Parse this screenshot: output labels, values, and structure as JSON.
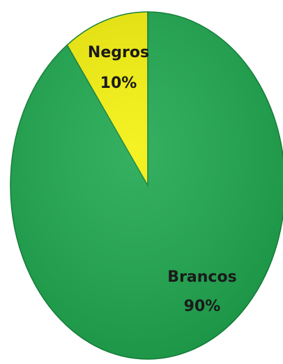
{
  "chart_data": {
    "type": "pie",
    "slices": [
      {
        "label": "Negros",
        "value": 10,
        "value_label": "10%",
        "color": "#f4f10c"
      },
      {
        "label": "Brancos",
        "value": 90,
        "value_label": "90%",
        "color": "#1fa84f"
      }
    ],
    "start_angle_deg": -90,
    "direction": "counterclockwise",
    "edge_color": "#14813a",
    "legend": "none",
    "title": ""
  }
}
